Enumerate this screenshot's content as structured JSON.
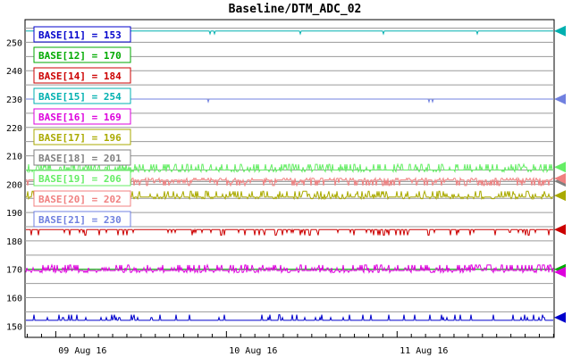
{
  "chart_data": {
    "type": "line",
    "title": "Baseline/DTM_ADC_02",
    "xlabel": "",
    "ylabel": "",
    "ylim": [
      146,
      258
    ],
    "xlim": [
      -0.18,
      2.92
    ],
    "y_ticks": [
      150,
      160,
      170,
      180,
      190,
      200,
      210,
      220,
      230,
      240,
      250
    ],
    "x_ticks": [
      {
        "value": 0,
        "label": "09 Aug 16"
      },
      {
        "value": 1,
        "label": "10 Aug 16"
      },
      {
        "value": 2,
        "label": "11 Aug 16"
      }
    ],
    "grid": true,
    "legend_placement": "top-left",
    "series": [
      {
        "name": "BASE[11] = 153",
        "color": "#0000cc",
        "value": 153,
        "baseline": 152,
        "spike_dir": 1,
        "activity": 0.35
      },
      {
        "name": "BASE[12] = 170",
        "color": "#00aa00",
        "value": 170,
        "baseline": 170,
        "spike_dir": 0,
        "activity": 0.0
      },
      {
        "name": "BASE[14] = 184",
        "color": "#cc0000",
        "value": 184,
        "baseline": 184,
        "spike_dir": -1,
        "activity": 0.4
      },
      {
        "name": "BASE[15] = 254",
        "color": "#00b0b0",
        "value": 254,
        "baseline": 254,
        "spike_dir": -1,
        "activity": 0.05
      },
      {
        "name": "BASE[16] = 169",
        "color": "#dd00dd",
        "value": 169,
        "baseline": 169.5,
        "spike_dir": 1,
        "activity": 0.9
      },
      {
        "name": "BASE[17] = 196",
        "color": "#aaaa00",
        "value": 196,
        "baseline": 195.5,
        "spike_dir": 1,
        "activity": 0.7
      },
      {
        "name": "BASE[18] = 201",
        "color": "#808080",
        "value": 201,
        "baseline": 201,
        "spike_dir": 0,
        "activity": 0.0
      },
      {
        "name": "BASE[19] = 206",
        "color": "#66ee66",
        "value": 206,
        "baseline": 205,
        "spike_dir": 1,
        "activity": 0.8
      },
      {
        "name": "BASE[20] = 202",
        "color": "#f08080",
        "value": 202,
        "baseline": 201.5,
        "spike_dir": -1,
        "activity": 0.8
      },
      {
        "name": "BASE[21] = 230",
        "color": "#7080e0",
        "value": 230,
        "baseline": 230,
        "spike_dir": -1,
        "activity": 0.02
      }
    ]
  }
}
